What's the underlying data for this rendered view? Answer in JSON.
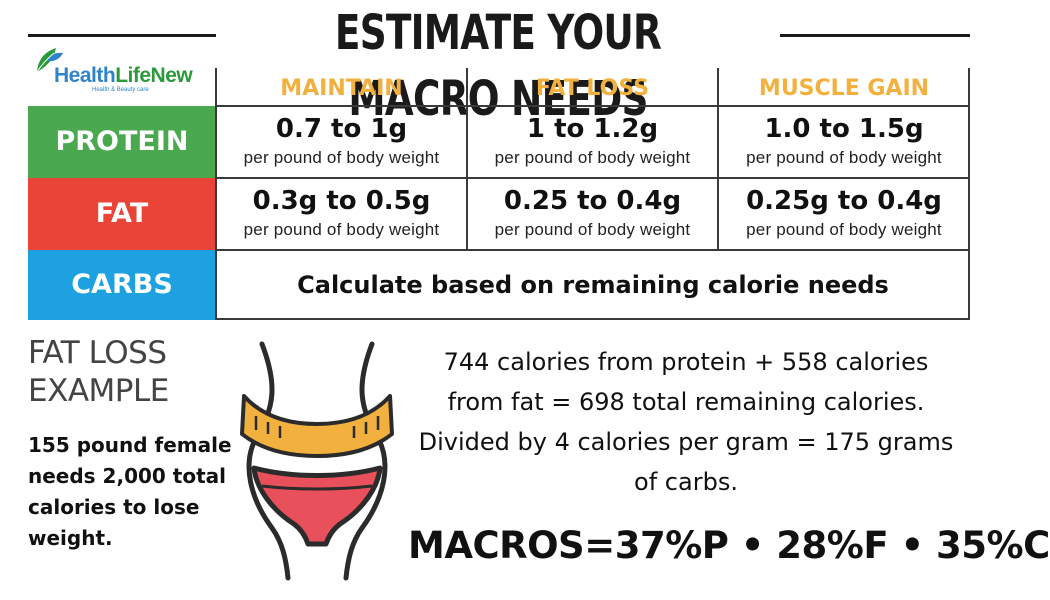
{
  "header": {
    "title": "ESTIMATE YOUR MACRO NEEDS"
  },
  "logo": {
    "brand_part1": "Health",
    "brand_part2": "LifeNew",
    "tagline": "Health & Beauty care"
  },
  "table": {
    "columns": [
      "MAINTAIN",
      "FAT LOSS",
      "MUSCLE GAIN"
    ],
    "rows": [
      {
        "label": "PROTEIN",
        "values": [
          {
            "main": "0.7 to 1g",
            "sub": "per pound of body weight"
          },
          {
            "main": "1 to 1.2g",
            "sub": "per pound of body weight"
          },
          {
            "main": "1.0 to 1.5g",
            "sub": "per pound of body weight"
          }
        ]
      },
      {
        "label": "FAT",
        "values": [
          {
            "main": "0.3g to 0.5g",
            "sub": "per pound of body weight"
          },
          {
            "main": "0.25 to 0.4g",
            "sub": "per pound of body weight"
          },
          {
            "main": "0.25g to 0.4g",
            "sub": "per pound of body weight"
          }
        ]
      },
      {
        "label": "CARBS",
        "full": "Calculate based on remaining calorie needs"
      }
    ]
  },
  "example": {
    "title_line1": "FAT LOSS",
    "title_line2": "EXAMPLE",
    "description": "155 pound female needs 2,000 total calories to lose weight.",
    "calc_line1": "744 calories from protein + 558 calories",
    "calc_line2": "from fat = 698 total remaining calories.",
    "calc_line3": "Divided by 4 calories per gram  = 175 grams",
    "calc_line4": "of carbs.",
    "macros": "MACROS=37%P • 28%F • 35%C"
  },
  "colors": {
    "protein": "#4aa94f",
    "fat": "#ea4338",
    "carbs": "#1da1e0",
    "column_header": "#f2b13e",
    "measuring_tape": "#f2b13e",
    "underwear": "#e8505b"
  },
  "icons": {
    "logo": "leaf-icon",
    "figure": "waist-measuring-tape-icon"
  }
}
